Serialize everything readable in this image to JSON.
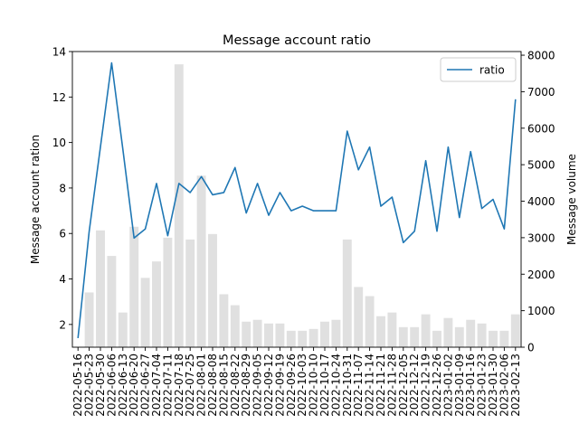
{
  "chart_data": {
    "type": "bar+line",
    "title": "Message account ratio",
    "ylabel_left": "Message account ration",
    "ylabel_right": "Message volume",
    "legend": {
      "position": "upper-right",
      "entries": [
        "ratio"
      ]
    },
    "ylim_left": [
      1.0,
      14.0
    ],
    "ylim_right": [
      0,
      8100
    ],
    "yticks_left": [
      2,
      4,
      6,
      8,
      10,
      12,
      14
    ],
    "yticks_right": [
      0,
      1000,
      2000,
      3000,
      4000,
      5000,
      6000,
      7000,
      8000
    ],
    "categories": [
      "2022-05-16",
      "2022-05-23",
      "2022-05-30",
      "2022-06-06",
      "2022-06-13",
      "2022-06-20",
      "2022-06-27",
      "2022-07-04",
      "2022-07-11",
      "2022-07-18",
      "2022-07-25",
      "2022-08-01",
      "2022-08-08",
      "2022-08-15",
      "2022-08-22",
      "2022-08-29",
      "2022-09-05",
      "2022-09-12",
      "2022-09-19",
      "2022-09-26",
      "2022-10-03",
      "2022-10-10",
      "2022-10-17",
      "2022-10-24",
      "2022-10-31",
      "2022-11-07",
      "2022-11-14",
      "2022-11-21",
      "2022-11-28",
      "2022-12-05",
      "2022-12-12",
      "2022-12-19",
      "2022-12-26",
      "2023-01-02",
      "2023-01-09",
      "2023-01-16",
      "2023-01-23",
      "2023-01-30",
      "2023-02-06",
      "2023-02-13"
    ],
    "xtick_labels": [
      "2022-05-16",
      "2022-05-23",
      "2022-05-30",
      "2022-06-06",
      "2022-06-13",
      "2022-06-20",
      "2022-06-27",
      "2022-07-04",
      "2022-07-11",
      "2022-07-18",
      "2022-07-25",
      "2022-08-01",
      "2022-08-08",
      "2022-08-15",
      "2022-08-22",
      "2022-08-29",
      "2022-09-05",
      "2022-09-12",
      "2022-09-19",
      "2022-09-26",
      "2022-10-03",
      "2022-10-10",
      "2022-10-17",
      "2022-10-24",
      "2022-10-31",
      "2022-11-07",
      "2022-11-14",
      "2022-11-21",
      "2022-11-28",
      "2022-12-05",
      "2022-12-12",
      "2022-12-19",
      "2022-12-26",
      "2023-01-02",
      "2023-01-09",
      "2023-01-16",
      "2023-01-23",
      "2023-01-30",
      "2023-02-06",
      "2023-02-13"
    ],
    "series": [
      {
        "name": "ratio",
        "axis": "left",
        "kind": "line",
        "color": "#1f77b4",
        "values": [
          1.4,
          6.1,
          9.8,
          13.5,
          9.7,
          5.8,
          6.2,
          8.2,
          5.9,
          8.2,
          7.8,
          8.5,
          7.7,
          7.8,
          8.9,
          6.9,
          8.2,
          6.8,
          7.8,
          7.0,
          7.2,
          7.0,
          7.0,
          7.0,
          10.5,
          8.8,
          9.8,
          7.2,
          7.6,
          5.6,
          6.1,
          9.2,
          6.1,
          9.8,
          6.7,
          9.6,
          7.1,
          7.5,
          6.2,
          11.9
        ]
      },
      {
        "name": "volume",
        "axis": "right",
        "kind": "bar",
        "color": "#e0e0e0",
        "values": [
          0,
          1500,
          3200,
          2500,
          950,
          3300,
          1900,
          2350,
          3000,
          7750,
          2950,
          4700,
          3100,
          1450,
          1150,
          700,
          750,
          650,
          650,
          450,
          450,
          500,
          700,
          750,
          2950,
          1650,
          1400,
          850,
          950,
          550,
          550,
          900,
          450,
          800,
          550,
          750,
          650,
          450,
          450,
          900
        ]
      }
    ]
  }
}
